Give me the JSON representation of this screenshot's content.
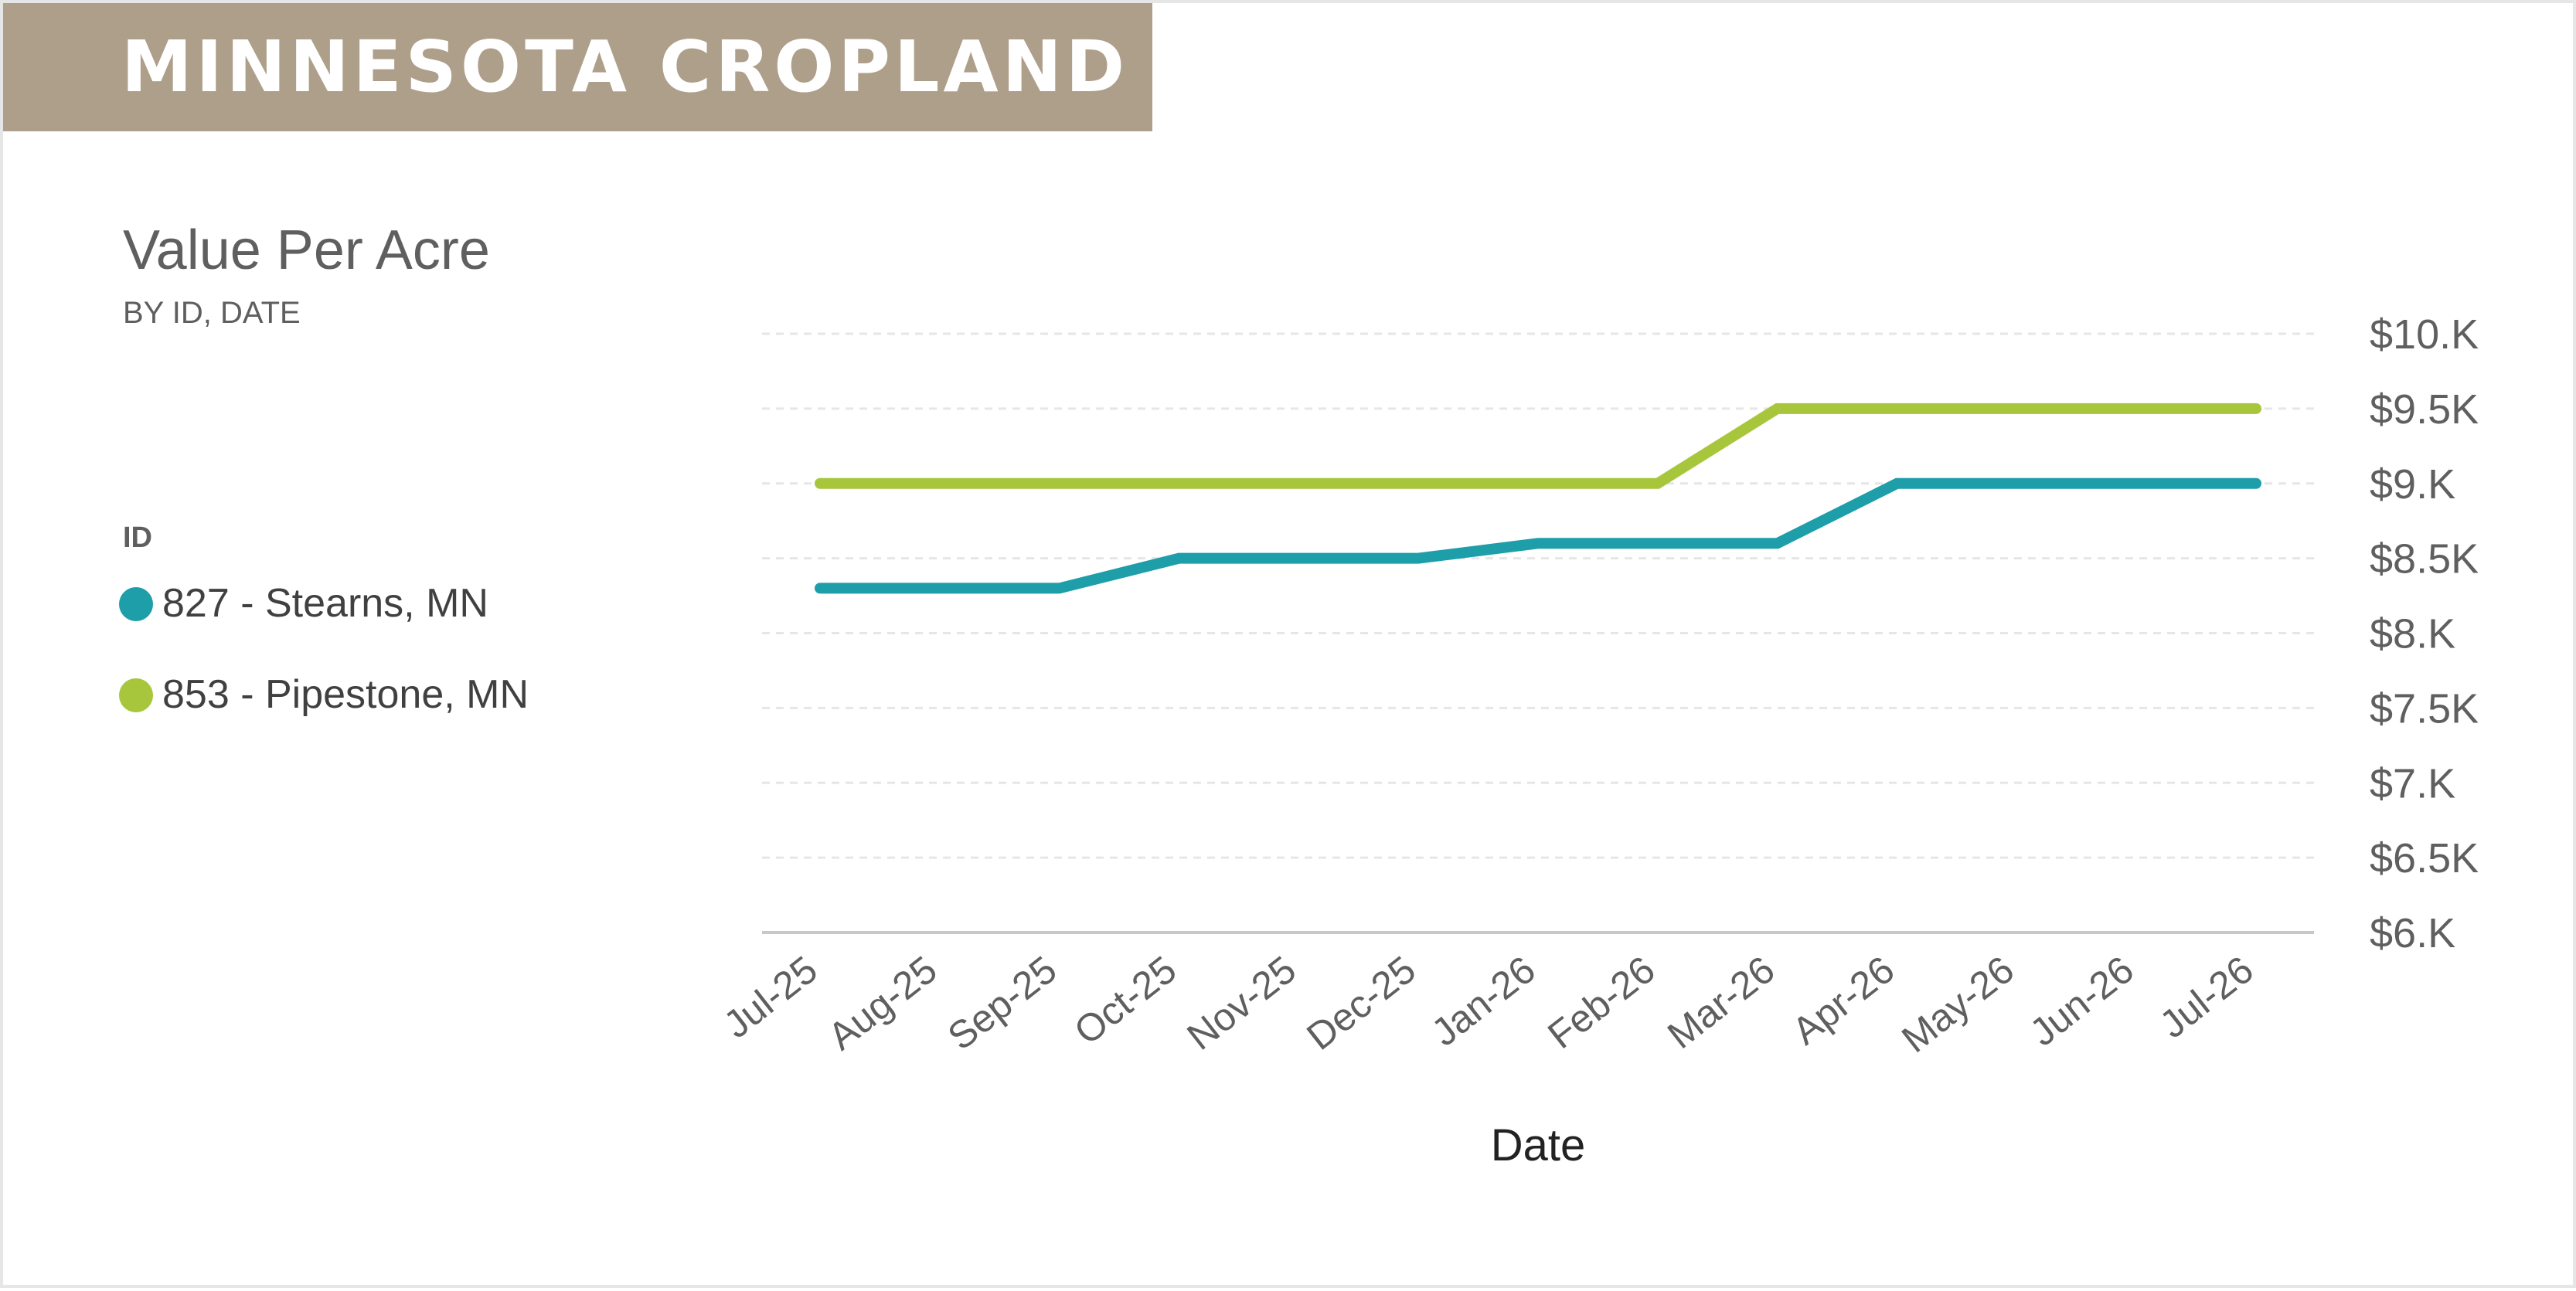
{
  "banner": {
    "title": "MINNESOTA CROPLAND B",
    "color": "#ae9f8a"
  },
  "legend": {
    "title": "ID",
    "items": [
      {
        "label": "827 - Stearns, MN",
        "color": "#1e9ea9"
      },
      {
        "label": "853 - Pipestone, MN",
        "color": "#a8c63c"
      }
    ]
  },
  "chart_data": {
    "type": "line",
    "title": "Value Per Acre",
    "subtitle": "BY ID, DATE",
    "xlabel": "Date",
    "ylabel": "",
    "categories": [
      "Jul-25",
      "Aug-25",
      "Sep-25",
      "Oct-25",
      "Nov-25",
      "Dec-25",
      "Jan-26",
      "Feb-26",
      "Mar-26",
      "Apr-26",
      "May-26",
      "Jun-26",
      "Jul-26"
    ],
    "y_ticks": [
      6000,
      6500,
      7000,
      7500,
      8000,
      8500,
      9000,
      9500,
      10000
    ],
    "y_tick_labels": [
      "$6.K",
      "$6.5K",
      "$7.K",
      "$7.5K",
      "$8.K",
      "$8.5K",
      "$9.K",
      "$9.5K",
      "$10.K"
    ],
    "ylim": [
      6000,
      10000
    ],
    "y_axis_side": "right",
    "grid": true,
    "legend_position": "left",
    "series": [
      {
        "name": "827 - Stearns, MN",
        "color": "#1e9ea9",
        "values": [
          8300,
          8300,
          8300,
          8500,
          8500,
          8500,
          8600,
          8600,
          8600,
          9000,
          9000,
          9000,
          9000
        ]
      },
      {
        "name": "853 - Pipestone, MN",
        "color": "#a8c63c",
        "values": [
          9000,
          9000,
          9000,
          9000,
          9000,
          9000,
          9000,
          9000,
          9500,
          9500,
          9500,
          9500,
          9500
        ]
      }
    ]
  }
}
